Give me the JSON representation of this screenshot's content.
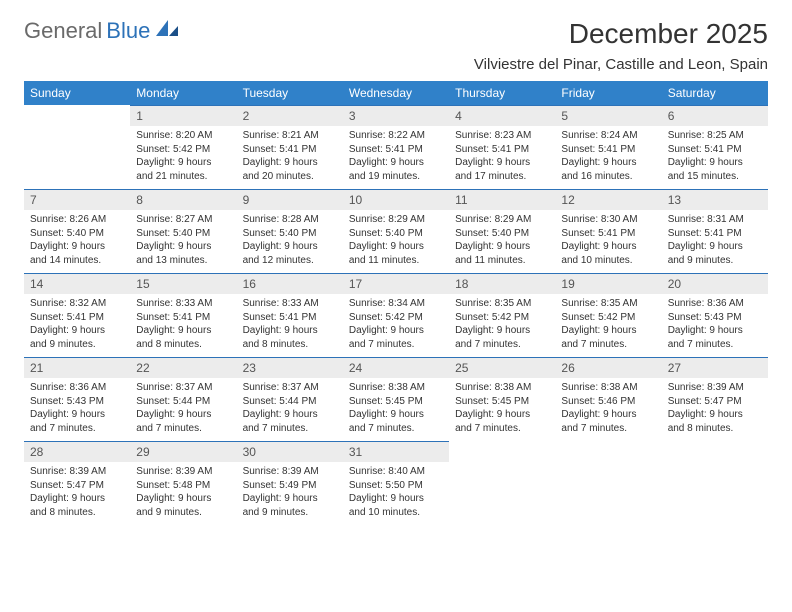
{
  "brand": {
    "part1": "General",
    "part2": "Blue"
  },
  "title": "December 2025",
  "location": "Vilviestre del Pinar, Castille and Leon, Spain",
  "columns": [
    "Sunday",
    "Monday",
    "Tuesday",
    "Wednesday",
    "Thursday",
    "Friday",
    "Saturday"
  ],
  "colors": {
    "header_bg": "#3081c9",
    "header_text": "#ffffff",
    "daynum_bg": "#ececec",
    "row_divider": "#2d72b8",
    "text": "#333333",
    "brand_gray": "#6a6a6a",
    "brand_blue": "#2d72b8",
    "background": "#ffffff"
  },
  "typography": {
    "month_title_size": 28,
    "location_size": 15,
    "header_size": 12,
    "daynum_size": 12,
    "details_size": 10,
    "font_family": "Arial"
  },
  "weeks": [
    [
      {
        "day": "",
        "sunrise": "",
        "sunset": "",
        "daylight": "",
        "empty": true
      },
      {
        "day": "1",
        "sunrise": "Sunrise: 8:20 AM",
        "sunset": "Sunset: 5:42 PM",
        "daylight": "Daylight: 9 hours and 21 minutes."
      },
      {
        "day": "2",
        "sunrise": "Sunrise: 8:21 AM",
        "sunset": "Sunset: 5:41 PM",
        "daylight": "Daylight: 9 hours and 20 minutes."
      },
      {
        "day": "3",
        "sunrise": "Sunrise: 8:22 AM",
        "sunset": "Sunset: 5:41 PM",
        "daylight": "Daylight: 9 hours and 19 minutes."
      },
      {
        "day": "4",
        "sunrise": "Sunrise: 8:23 AM",
        "sunset": "Sunset: 5:41 PM",
        "daylight": "Daylight: 9 hours and 17 minutes."
      },
      {
        "day": "5",
        "sunrise": "Sunrise: 8:24 AM",
        "sunset": "Sunset: 5:41 PM",
        "daylight": "Daylight: 9 hours and 16 minutes."
      },
      {
        "day": "6",
        "sunrise": "Sunrise: 8:25 AM",
        "sunset": "Sunset: 5:41 PM",
        "daylight": "Daylight: 9 hours and 15 minutes."
      }
    ],
    [
      {
        "day": "7",
        "sunrise": "Sunrise: 8:26 AM",
        "sunset": "Sunset: 5:40 PM",
        "daylight": "Daylight: 9 hours and 14 minutes."
      },
      {
        "day": "8",
        "sunrise": "Sunrise: 8:27 AM",
        "sunset": "Sunset: 5:40 PM",
        "daylight": "Daylight: 9 hours and 13 minutes."
      },
      {
        "day": "9",
        "sunrise": "Sunrise: 8:28 AM",
        "sunset": "Sunset: 5:40 PM",
        "daylight": "Daylight: 9 hours and 12 minutes."
      },
      {
        "day": "10",
        "sunrise": "Sunrise: 8:29 AM",
        "sunset": "Sunset: 5:40 PM",
        "daylight": "Daylight: 9 hours and 11 minutes."
      },
      {
        "day": "11",
        "sunrise": "Sunrise: 8:29 AM",
        "sunset": "Sunset: 5:40 PM",
        "daylight": "Daylight: 9 hours and 11 minutes."
      },
      {
        "day": "12",
        "sunrise": "Sunrise: 8:30 AM",
        "sunset": "Sunset: 5:41 PM",
        "daylight": "Daylight: 9 hours and 10 minutes."
      },
      {
        "day": "13",
        "sunrise": "Sunrise: 8:31 AM",
        "sunset": "Sunset: 5:41 PM",
        "daylight": "Daylight: 9 hours and 9 minutes."
      }
    ],
    [
      {
        "day": "14",
        "sunrise": "Sunrise: 8:32 AM",
        "sunset": "Sunset: 5:41 PM",
        "daylight": "Daylight: 9 hours and 9 minutes."
      },
      {
        "day": "15",
        "sunrise": "Sunrise: 8:33 AM",
        "sunset": "Sunset: 5:41 PM",
        "daylight": "Daylight: 9 hours and 8 minutes."
      },
      {
        "day": "16",
        "sunrise": "Sunrise: 8:33 AM",
        "sunset": "Sunset: 5:41 PM",
        "daylight": "Daylight: 9 hours and 8 minutes."
      },
      {
        "day": "17",
        "sunrise": "Sunrise: 8:34 AM",
        "sunset": "Sunset: 5:42 PM",
        "daylight": "Daylight: 9 hours and 7 minutes."
      },
      {
        "day": "18",
        "sunrise": "Sunrise: 8:35 AM",
        "sunset": "Sunset: 5:42 PM",
        "daylight": "Daylight: 9 hours and 7 minutes."
      },
      {
        "day": "19",
        "sunrise": "Sunrise: 8:35 AM",
        "sunset": "Sunset: 5:42 PM",
        "daylight": "Daylight: 9 hours and 7 minutes."
      },
      {
        "day": "20",
        "sunrise": "Sunrise: 8:36 AM",
        "sunset": "Sunset: 5:43 PM",
        "daylight": "Daylight: 9 hours and 7 minutes."
      }
    ],
    [
      {
        "day": "21",
        "sunrise": "Sunrise: 8:36 AM",
        "sunset": "Sunset: 5:43 PM",
        "daylight": "Daylight: 9 hours and 7 minutes."
      },
      {
        "day": "22",
        "sunrise": "Sunrise: 8:37 AM",
        "sunset": "Sunset: 5:44 PM",
        "daylight": "Daylight: 9 hours and 7 minutes."
      },
      {
        "day": "23",
        "sunrise": "Sunrise: 8:37 AM",
        "sunset": "Sunset: 5:44 PM",
        "daylight": "Daylight: 9 hours and 7 minutes."
      },
      {
        "day": "24",
        "sunrise": "Sunrise: 8:38 AM",
        "sunset": "Sunset: 5:45 PM",
        "daylight": "Daylight: 9 hours and 7 minutes."
      },
      {
        "day": "25",
        "sunrise": "Sunrise: 8:38 AM",
        "sunset": "Sunset: 5:45 PM",
        "daylight": "Daylight: 9 hours and 7 minutes."
      },
      {
        "day": "26",
        "sunrise": "Sunrise: 8:38 AM",
        "sunset": "Sunset: 5:46 PM",
        "daylight": "Daylight: 9 hours and 7 minutes."
      },
      {
        "day": "27",
        "sunrise": "Sunrise: 8:39 AM",
        "sunset": "Sunset: 5:47 PM",
        "daylight": "Daylight: 9 hours and 8 minutes."
      }
    ],
    [
      {
        "day": "28",
        "sunrise": "Sunrise: 8:39 AM",
        "sunset": "Sunset: 5:47 PM",
        "daylight": "Daylight: 9 hours and 8 minutes."
      },
      {
        "day": "29",
        "sunrise": "Sunrise: 8:39 AM",
        "sunset": "Sunset: 5:48 PM",
        "daylight": "Daylight: 9 hours and 9 minutes."
      },
      {
        "day": "30",
        "sunrise": "Sunrise: 8:39 AM",
        "sunset": "Sunset: 5:49 PM",
        "daylight": "Daylight: 9 hours and 9 minutes."
      },
      {
        "day": "31",
        "sunrise": "Sunrise: 8:40 AM",
        "sunset": "Sunset: 5:50 PM",
        "daylight": "Daylight: 9 hours and 10 minutes."
      },
      {
        "day": "",
        "sunrise": "",
        "sunset": "",
        "daylight": "",
        "empty": true
      },
      {
        "day": "",
        "sunrise": "",
        "sunset": "",
        "daylight": "",
        "empty": true
      },
      {
        "day": "",
        "sunrise": "",
        "sunset": "",
        "daylight": "",
        "empty": true
      }
    ]
  ]
}
